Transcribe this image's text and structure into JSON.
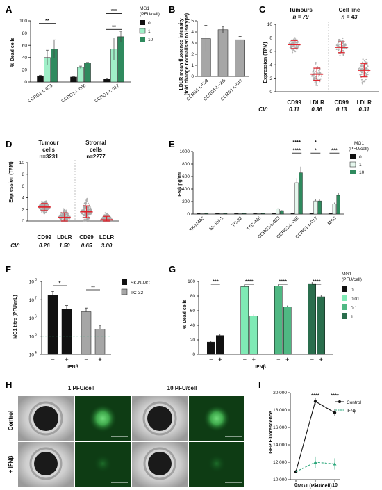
{
  "panels": {
    "A": {
      "label": "A",
      "ylabel": "% Dead cells",
      "legend_title": "MG1\n(PFU/cell)"
    },
    "B": {
      "label": "B",
      "ylabel": "LDLR mean fluorence intensity\n(fold change normalised to isotype)"
    },
    "C": {
      "label": "C",
      "title_left": "Tumours",
      "n_left": "n = 79",
      "title_right": "Cell line",
      "n_right": "n = 43",
      "ylabel": "Expression (TPM)",
      "cv_label": "CV:",
      "cv": [
        "0.11",
        "0.36",
        "0.13",
        "0.31"
      ],
      "cats": [
        "CD99",
        "LDLR",
        "CD99",
        "LDLR"
      ]
    },
    "D": {
      "label": "D",
      "title_left": "Tumour\ncells",
      "n_left": "n=3231",
      "title_right": "Stromal\ncells",
      "n_right": "n=2277",
      "ylabel": "Expression (TPM)",
      "cv_label": "CV:",
      "cv": [
        "0.26",
        "1.50",
        "0.65",
        "3.00"
      ],
      "cats": [
        "CD99",
        "LDLR",
        "CD99",
        "LDLR"
      ]
    },
    "E": {
      "label": "E",
      "ylabel": "IFNβ pg/mL",
      "legend_title": "MG1\n(PFU/cell)"
    },
    "F": {
      "label": "F",
      "ylabel": "MG1 titre (PFU/mL)",
      "xlabel": "IFNβ"
    },
    "G": {
      "label": "G",
      "ylabel": "% Dead cells",
      "xlabel": "IFNβ",
      "legend_title": "MG1\n(PFU/cell)"
    },
    "H": {
      "label": "H",
      "col1": "1 PFU/cell",
      "col2": "10 PFU/cell",
      "row1": "Control",
      "row2": "+ IFNβ"
    },
    "I": {
      "label": "I",
      "ylabel": "GFP Fluorescence",
      "xlabel": "MG1 (PFU/cell)"
    }
  },
  "chart_data": [
    {
      "panel": "A",
      "type": "bar",
      "categories": [
        "CCRG1-L-023",
        "CCRG1-L-066",
        "CCRG1-L-017"
      ],
      "series": [
        {
          "name": "0",
          "values": [
            10,
            8,
            5
          ],
          "err": [
            1,
            1,
            1
          ],
          "color": "#111111"
        },
        {
          "name": "1",
          "values": [
            40,
            24,
            54
          ],
          "err": [
            12,
            2,
            18
          ],
          "color": "#9fefc8"
        },
        {
          "name": "10",
          "values": [
            54,
            31,
            74
          ],
          "err": [
            15,
            1,
            9
          ],
          "color": "#2f8a5e"
        }
      ],
      "ylim": [
        0,
        100
      ],
      "yticks": [
        0,
        20,
        40,
        60,
        80,
        100
      ],
      "sig": [
        {
          "cat": 0,
          "text": "**",
          "y": 96
        },
        {
          "cat": 2,
          "text": "***",
          "y": 112
        },
        {
          "cat": 2,
          "text": "**",
          "y": 86
        }
      ]
    },
    {
      "panel": "B",
      "type": "bar",
      "categories": [
        "CCRG1-L-023",
        "CCRG1-L-066",
        "CCRG1-L-017"
      ],
      "values": [
        3.4,
        4.2,
        3.3
      ],
      "err": [
        1.2,
        0.3,
        0.3
      ],
      "color": "#a6a6a6",
      "ylim": [
        0,
        5
      ],
      "yticks": [
        0,
        1,
        2,
        3,
        4,
        5
      ]
    },
    {
      "panel": "C",
      "type": "scatter",
      "ylim": [
        0,
        10
      ],
      "yticks": [
        0,
        2,
        4,
        6,
        8,
        10
      ],
      "groups": [
        {
          "name": "CD99",
          "mean": 7.0,
          "sd": 0.6
        },
        {
          "name": "LDLR",
          "mean": 2.6,
          "sd": 0.9
        },
        {
          "name": "CD99",
          "mean": 6.6,
          "sd": 0.8
        },
        {
          "name": "LDLR",
          "mean": 3.2,
          "sd": 1.0
        }
      ]
    },
    {
      "panel": "D",
      "type": "scatter",
      "ylim": [
        0,
        10
      ],
      "yticks": [
        0,
        2,
        4,
        6,
        8,
        10
      ],
      "groups": [
        {
          "name": "CD99",
          "mean": 2.4,
          "sd": 0.6
        },
        {
          "name": "LDLR",
          "mean": 0.6,
          "sd": 0.8
        },
        {
          "name": "CD99",
          "mean": 1.6,
          "sd": 1.0
        },
        {
          "name": "LDLR",
          "mean": 0.2,
          "sd": 0.6
        }
      ]
    },
    {
      "panel": "E",
      "type": "bar",
      "categories": [
        "SK-N-MC",
        "SK-ES-1",
        "TC-32",
        "TTC-466",
        "CCRG1-L-023",
        "CCRG1-L-066",
        "CCRG1-L-017",
        "MSC"
      ],
      "series": [
        {
          "name": "0",
          "values": [
            0,
            0,
            0,
            0,
            0,
            0,
            0,
            0
          ],
          "color": "#111111"
        },
        {
          "name": "1",
          "values": [
            0,
            0,
            0,
            0,
            80,
            500,
            210,
            160
          ],
          "color": "#e6f7ee"
        },
        {
          "name": "10",
          "values": [
            0,
            0,
            0,
            0,
            55,
            660,
            210,
            300
          ],
          "color": "#2f8a5e"
        }
      ],
      "ylim": [
        0,
        1000
      ],
      "yticks": [
        0,
        200,
        400,
        600,
        800,
        1000
      ],
      "sig": [
        {
          "text": "****",
          "cat": 5,
          "y": 950
        },
        {
          "text": "****",
          "cat": 5,
          "y": 820
        },
        {
          "text": "*",
          "cat": 6,
          "y": 950
        },
        {
          "text": "*",
          "cat": 6,
          "y": 820
        },
        {
          "text": "***",
          "cat": 7,
          "y": 820
        }
      ]
    },
    {
      "panel": "F",
      "type": "bar",
      "log": true,
      "ylim": [
        10000,
        100000000
      ],
      "yticks": [
        "10^4",
        "10^5",
        "10^6",
        "10^7",
        "10^8"
      ],
      "series": [
        {
          "name": "SK-N-MC",
          "values": [
            18000000,
            3000000
          ],
          "color": "#111111"
        },
        {
          "name": "TC-32",
          "values": [
            2200000,
            250000
          ],
          "color": "#a6a6a6"
        }
      ],
      "xticks": [
        "−",
        "+",
        "−",
        "+"
      ],
      "sig": [
        "*",
        "**"
      ],
      "detection_limit": 100000
    },
    {
      "panel": "G",
      "type": "bar",
      "ylim": [
        0,
        100
      ],
      "yticks": [
        0,
        20,
        40,
        60,
        80,
        100
      ],
      "series": [
        {
          "name": "0",
          "values": [
            17,
            26
          ],
          "color": "#111111"
        },
        {
          "name": "0.01",
          "values": [
            93,
            53
          ],
          "color": "#7feab5"
        },
        {
          "name": "0.1",
          "values": [
            94,
            65
          ],
          "color": "#4fb883"
        },
        {
          "name": "1",
          "values": [
            97,
            79
          ],
          "color": "#2a6e4d"
        }
      ],
      "xticks": [
        "−",
        "+"
      ],
      "sig": [
        "***",
        "****",
        "****",
        "****"
      ]
    },
    {
      "panel": "I",
      "type": "line",
      "x": [
        "0",
        "1",
        "10"
      ],
      "ylim": [
        10000,
        20000
      ],
      "yticks": [
        "10,000",
        "12,000",
        "14,000",
        "16,000",
        "18,000",
        "20,000"
      ],
      "series": [
        {
          "name": "Control",
          "values": [
            10900,
            19000,
            17700
          ],
          "color": "#111111"
        },
        {
          "name": "IFNβ",
          "values": [
            10900,
            12000,
            11800
          ],
          "color": "#2aa77a"
        }
      ],
      "sig": [
        "****",
        "****"
      ]
    }
  ]
}
